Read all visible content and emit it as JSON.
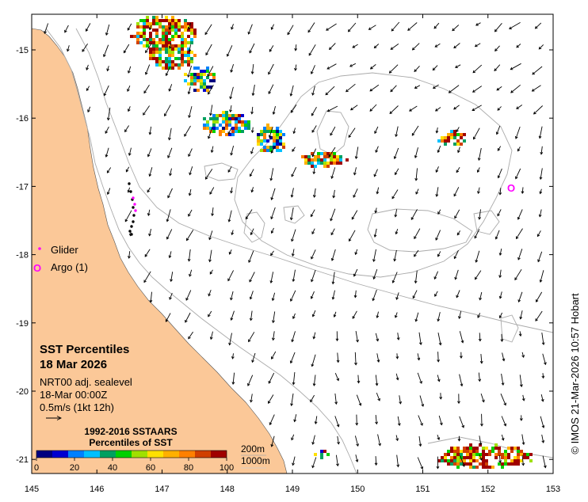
{
  "map": {
    "x_ticks": [
      "145",
      "146",
      "147",
      "148",
      "149",
      "150",
      "151",
      "152",
      "153"
    ],
    "y_ticks": [
      "-15",
      "-16",
      "-17",
      "-18",
      "-19",
      "-20",
      "-21"
    ],
    "land_color": "#fbc898",
    "contour_color": "#aaaaaa"
  },
  "legend": {
    "glider_label": "Glider",
    "glider_color": "#ff00ff",
    "argo_label": "Argo (1)",
    "argo_color": "#ff00ff",
    "argo_symbol": "O"
  },
  "info": {
    "title": "SST Percentiles",
    "date": "18 Mar 2026",
    "line1": "NRT00 adj. sealevel",
    "line2": "18-Mar 00:00Z",
    "line3": "0.5m/s (1kt 12h)"
  },
  "colorbar": {
    "title1": "1992-2016 SSTAARS",
    "title2": "Percentiles of SST",
    "ticks": [
      "0",
      "20",
      "40",
      "60",
      "80",
      "100"
    ],
    "colors": [
      "#000080",
      "#0000d0",
      "#0080ff",
      "#00c0ff",
      "#00a060",
      "#00d000",
      "#a0e000",
      "#ffe000",
      "#ffb000",
      "#ff8000",
      "#d04000",
      "#a00000"
    ]
  },
  "depth_legend": {
    "d1": "200m",
    "d2": "1000m"
  },
  "credit": "© IMOS 21-Mar-2026 10:57 Hobart"
}
